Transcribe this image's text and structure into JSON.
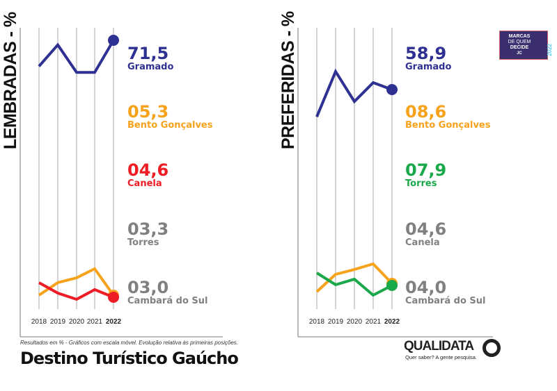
{
  "chart_data": [
    {
      "type": "line",
      "title": "LEMBRADAS - %",
      "categories": [
        "2018",
        "2019",
        "2020",
        "2021",
        "2022"
      ],
      "series": [
        {
          "name": "Gramado",
          "value_2022": "71,5",
          "color": "#2e3192",
          "values": [
            63,
            70,
            61,
            61,
            71.5
          ]
        },
        {
          "name": "Bento Gonçalves",
          "value_2022": "05,3",
          "color": "#f7a21b",
          "values": [
            5.3,
            6.2,
            6.55,
            7.2,
            5.3
          ]
        },
        {
          "name": "Canela",
          "value_2022": "04,6",
          "color": "#ee1c25",
          "values": [
            5.65,
            4.9,
            4.45,
            5.15,
            4.6
          ]
        },
        {
          "name": "Torres",
          "value_2022": "03,3",
          "color": "#808080"
        },
        {
          "name": "Cambará do Sul",
          "value_2022": "03,0",
          "color": "#808080"
        }
      ]
    },
    {
      "type": "line",
      "title": "PREFERIDAS - %",
      "categories": [
        "2018",
        "2019",
        "2020",
        "2021",
        "2022"
      ],
      "series": [
        {
          "name": "Gramado",
          "value_2022": "58,9",
          "color": "#2e3192",
          "values": [
            49.1,
            65.4,
            54.6,
            61.4,
            58.9
          ]
        },
        {
          "name": "Bento Gonçalves",
          "value_2022": "08,6",
          "color": "#f7a21b",
          "values": [
            7.4,
            9.9,
            10.6,
            11.4,
            8.6
          ]
        },
        {
          "name": "Torres",
          "value_2022": "07,9",
          "color": "#1aa84b",
          "values": [
            9.7,
            8.0,
            8.8,
            6.5,
            7.9
          ]
        },
        {
          "name": "Canela",
          "value_2022": "04,6",
          "color": "#808080"
        },
        {
          "name": "Cambará do Sul",
          "value_2022": "04,0",
          "color": "#808080"
        }
      ]
    }
  ],
  "footer": {
    "note": "Resultados em % - Gráficos com escala móvel. Evolução relativa às primeiras posições.",
    "title": "Destino Turístico Gaúcho"
  },
  "badge": {
    "line1": "MARCAS",
    "line2": "DE QUEM",
    "line3": "DECIDE",
    "year": "2022",
    "brand": "JC"
  },
  "logo": {
    "name": "QUALIDATA",
    "tagline": "Quer saber? A gente pesquisa."
  }
}
